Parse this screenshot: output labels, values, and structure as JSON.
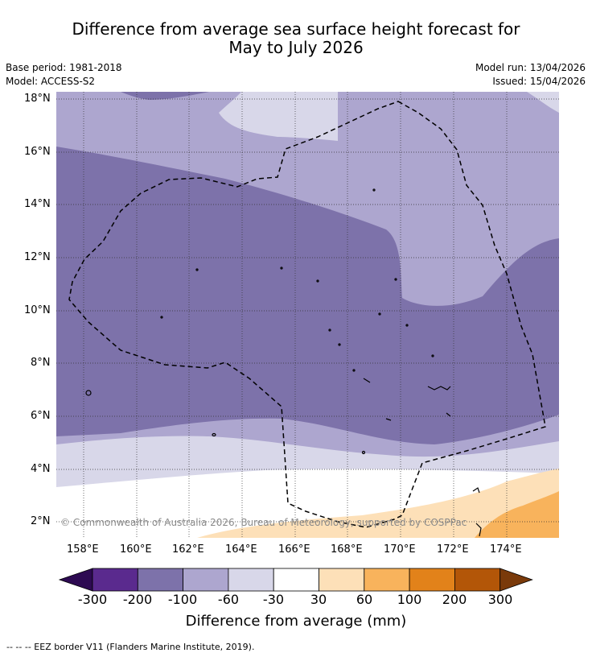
{
  "title_line1": "Difference from average sea surface height forecast for",
  "title_line2": "May to July 2026",
  "base_period": "Base period: 1981-2018",
  "model": "Model: ACCESS-S2",
  "model_run": "Model run: 13/04/2026",
  "issued": "Issued: 15/04/2026",
  "lat_labels": [
    "18°N",
    "16°N",
    "14°N",
    "12°N",
    "10°N",
    "8°N",
    "6°N",
    "4°N",
    "2°N"
  ],
  "lon_labels": [
    "158°E",
    "160°E",
    "162°E",
    "164°E",
    "166°E",
    "168°E",
    "170°E",
    "172°E",
    "174°E"
  ],
  "copyright": "© Commonwealth of Australia 2026, Bureau of Meteorology, supported by COSPPac",
  "colorbar": {
    "labels": [
      "-300",
      "-200",
      "-100",
      "-60",
      "-30",
      "30",
      "60",
      "100",
      "200",
      "300"
    ],
    "colors": [
      "#2d0a52",
      "#5a2a8e",
      "#7d72aa",
      "#ada6cf",
      "#d8d7e9",
      "#ffffff",
      "#fde0b8",
      "#f8b35c",
      "#e2821a",
      "#b35608",
      "#7a3a0a"
    ],
    "title": "Difference from average (mm)"
  },
  "footer": "--  --  -- EEZ border V11 (Flanders Marine Institute, 2019)."
}
